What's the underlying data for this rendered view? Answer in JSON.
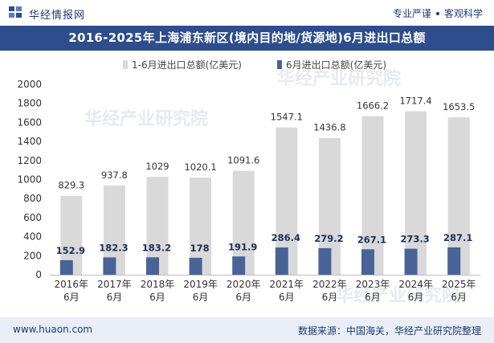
{
  "header": {
    "brand": "华经情报网",
    "tagline_left": "专业严谨",
    "tagline_right": "客观科学"
  },
  "title": "2016-2025年上海浦东新区(境内目的地/货源地)6月进出口总额",
  "watermark": "华经产业研究院",
  "footer": {
    "url": "www.huaon.com",
    "source": "数据来源：中国海关，华经产业研究院整理"
  },
  "colors": {
    "series_cumulative": "#d9d9d9",
    "series_june": "#4a6397",
    "title_band": "#2d4d8c",
    "footer_band": "#e9eef7"
  },
  "chart_data": {
    "type": "bar",
    "categories": [
      "2016年\n6月",
      "2017年\n6月",
      "2018年\n6月",
      "2019年\n6月",
      "2020年\n6月",
      "2021年\n6月",
      "2022年\n6月",
      "2023年\n6月",
      "2024年\n6月",
      "2025年\n6月"
    ],
    "series": [
      {
        "name": "1-6月进出口总额(亿美元)",
        "values": [
          829.3,
          937.8,
          1029,
          1020.1,
          1091.6,
          1547.1,
          1436.8,
          1666.2,
          1717.4,
          1653.5
        ]
      },
      {
        "name": "6月进出口总额(亿美元)",
        "values": [
          152.9,
          182.3,
          183.2,
          178,
          191.9,
          286.4,
          279.2,
          267.1,
          273.3,
          287.1
        ]
      }
    ],
    "yticks": [
      "0",
      "200",
      "400",
      "600",
      "800",
      "1000",
      "1200",
      "1400",
      "1600",
      "1800",
      "2000"
    ],
    "ylim": [
      0,
      2000
    ],
    "legend_position": "top-center",
    "grid": false
  }
}
